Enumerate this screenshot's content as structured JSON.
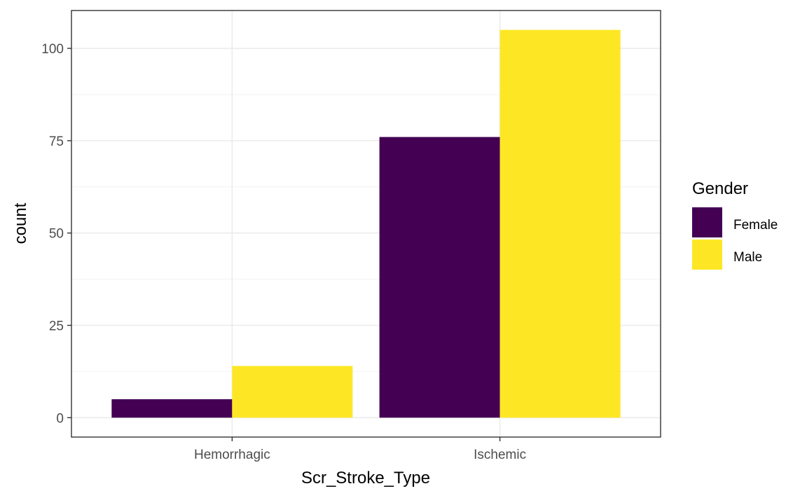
{
  "chart_data": {
    "type": "bar",
    "categories": [
      "Hemorrhagic",
      "Ischemic"
    ],
    "series": [
      {
        "name": "Female",
        "values": [
          5,
          76
        ],
        "color": "#440154"
      },
      {
        "name": "Male",
        "values": [
          14,
          105
        ],
        "color": "#FDE725"
      }
    ],
    "xlabel": "Scr_Stroke_Type",
    "ylabel": "count",
    "yticks": [
      0,
      25,
      50,
      75,
      100
    ],
    "ylim": [
      -5.25,
      110.25
    ],
    "grid": true,
    "legend": {
      "title": "Gender",
      "position": "right"
    }
  }
}
